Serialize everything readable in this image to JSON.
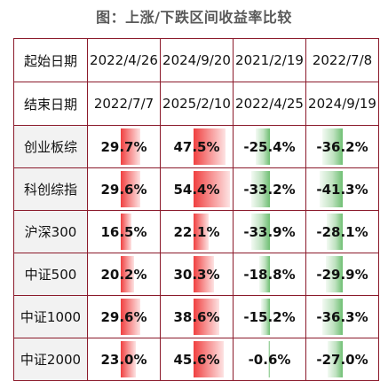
{
  "title": "图：上涨/下跌区间收益率比较",
  "header_rows": [
    {
      "label": "起始日期",
      "cells": [
        "2022/4/26",
        "2024/9/20",
        "2021/2/19",
        "2022/7/8"
      ]
    },
    {
      "label": "结束日期",
      "cells": [
        "2022/7/7",
        "2025/2/10",
        "2022/4/25",
        "2024/9/19"
      ]
    }
  ],
  "rows": [
    {
      "label": "创业板综",
      "values": [
        "29.7%",
        "47.5%",
        "-25.4%",
        "-36.2%"
      ],
      "nums": [
        29.7,
        47.5,
        -25.4,
        -36.2
      ]
    },
    {
      "label": "科创综指",
      "values": [
        "29.6%",
        "54.4%",
        "-33.2%",
        "-41.3%"
      ],
      "nums": [
        29.6,
        54.4,
        -33.2,
        -41.3
      ]
    },
    {
      "label": "沪深300",
      "values": [
        "16.5%",
        "22.1%",
        "-33.9%",
        "-28.1%"
      ],
      "nums": [
        16.5,
        22.1,
        -33.9,
        -28.1
      ]
    },
    {
      "label": "中证500",
      "values": [
        "20.2%",
        "30.3%",
        "-18.8%",
        "-29.9%"
      ],
      "nums": [
        20.2,
        30.3,
        -18.8,
        -29.9
      ]
    },
    {
      "label": "中证1000",
      "values": [
        "29.6%",
        "38.6%",
        "-15.2%",
        "-36.3%"
      ],
      "nums": [
        29.6,
        38.6,
        -15.2,
        -36.3
      ]
    },
    {
      "label": "中证2000",
      "values": [
        "23.0%",
        "45.6%",
        "-0.6%",
        "-27.0%"
      ],
      "nums": [
        23.0,
        45.6,
        -0.6,
        -27.0
      ]
    }
  ],
  "colors": {
    "positive": "#f04040",
    "negative": "#6fbf73",
    "border": "#8b1a2b"
  }
}
